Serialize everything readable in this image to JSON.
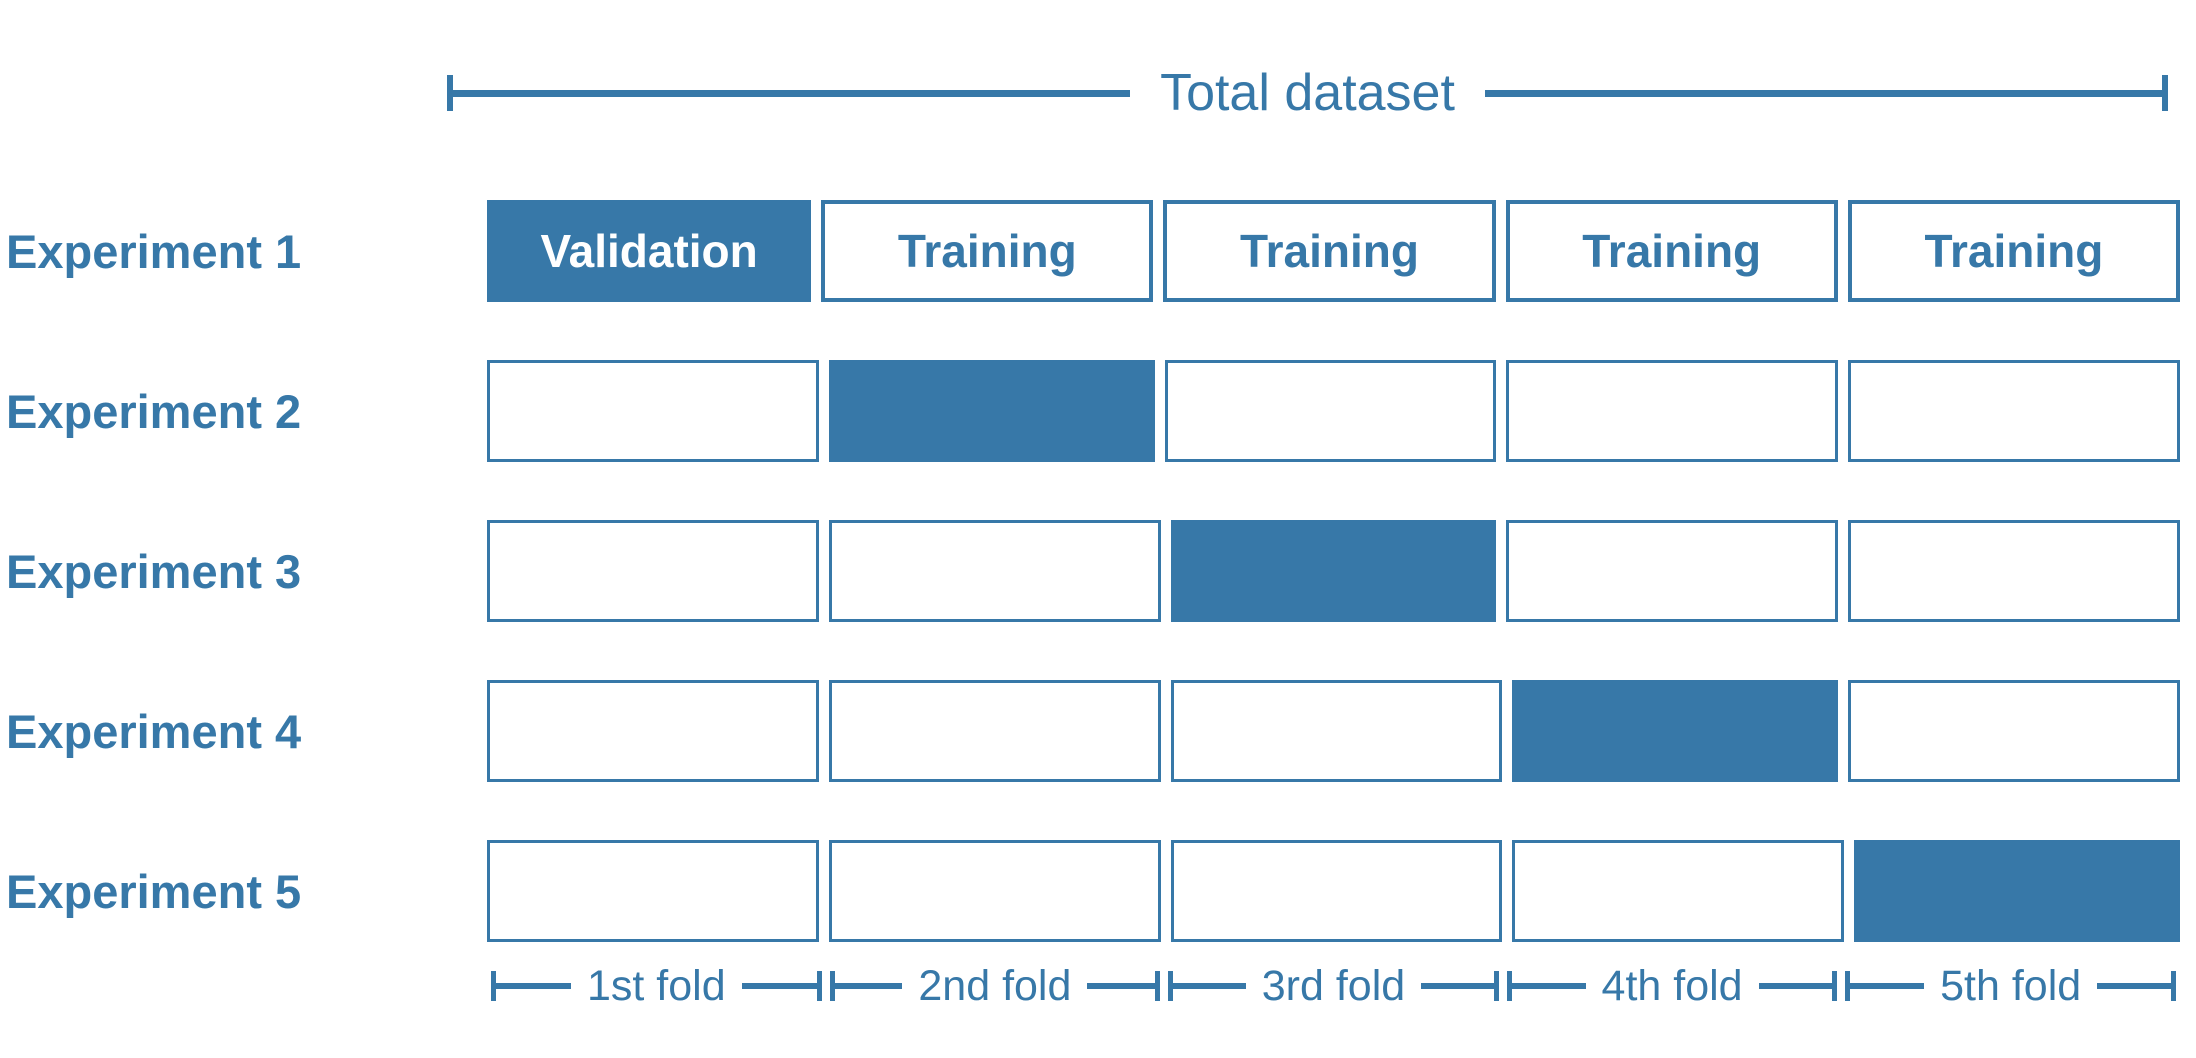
{
  "palette": {
    "accent": "#3778A8",
    "validation_text": "#FFFFFF",
    "background": "#FFFFFF"
  },
  "header": {
    "total_label": "Total dataset"
  },
  "rows": [
    {
      "label": "Experiment 1",
      "cells": [
        {
          "type": "validation",
          "text": "Validation"
        },
        {
          "type": "training",
          "text": "Training"
        },
        {
          "type": "training",
          "text": "Training"
        },
        {
          "type": "training",
          "text": "Training"
        },
        {
          "type": "training",
          "text": "Training"
        }
      ]
    },
    {
      "label": "Experiment 2",
      "cells": [
        {
          "type": "empty",
          "text": ""
        },
        {
          "type": "filled",
          "text": ""
        },
        {
          "type": "empty",
          "text": ""
        },
        {
          "type": "empty",
          "text": ""
        },
        {
          "type": "empty",
          "text": ""
        }
      ]
    },
    {
      "label": "Experiment 3",
      "cells": [
        {
          "type": "empty",
          "text": ""
        },
        {
          "type": "empty",
          "text": ""
        },
        {
          "type": "filled",
          "text": ""
        },
        {
          "type": "empty",
          "text": ""
        },
        {
          "type": "empty",
          "text": ""
        }
      ]
    },
    {
      "label": "Experiment 4",
      "cells": [
        {
          "type": "empty",
          "text": ""
        },
        {
          "type": "empty",
          "text": ""
        },
        {
          "type": "empty",
          "text": ""
        },
        {
          "type": "filled",
          "text": ""
        },
        {
          "type": "empty",
          "text": ""
        }
      ]
    },
    {
      "label": "Experiment 5",
      "cells": [
        {
          "type": "empty",
          "text": ""
        },
        {
          "type": "empty",
          "text": ""
        },
        {
          "type": "empty",
          "text": ""
        },
        {
          "type": "empty",
          "text": ""
        },
        {
          "type": "filled",
          "text": ""
        }
      ]
    }
  ],
  "folds": [
    {
      "label": "1st fold"
    },
    {
      "label": "2nd fold"
    },
    {
      "label": "3rd fold"
    },
    {
      "label": "4th fold"
    },
    {
      "label": "5th fold"
    }
  ]
}
